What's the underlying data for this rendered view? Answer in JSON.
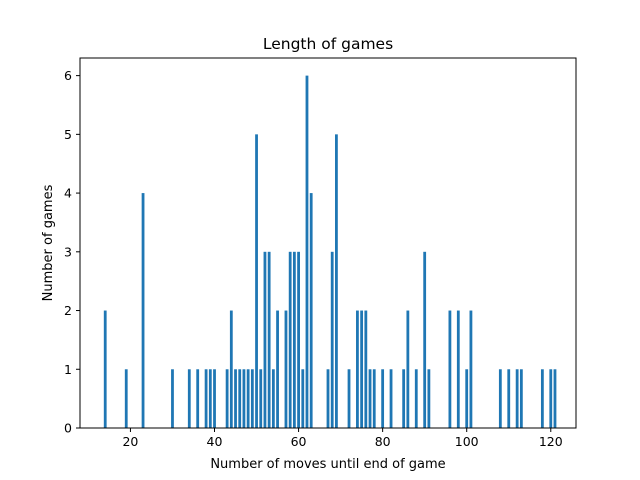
{
  "chart_data": {
    "type": "bar",
    "title": "Length of games",
    "xlabel": "Number of moves until end of game",
    "ylabel": "Number of games",
    "xlim": [
      8,
      126
    ],
    "ylim": [
      0,
      6.3
    ],
    "xticks": [
      20,
      40,
      60,
      80,
      100,
      120
    ],
    "yticks": [
      0,
      1,
      2,
      3,
      4,
      5,
      6
    ],
    "grid": false,
    "bar_color": "#1f77b4",
    "x": [
      14,
      19,
      23,
      30,
      34,
      36,
      38,
      39,
      40,
      43,
      44,
      45,
      46,
      47,
      48,
      49,
      50,
      51,
      52,
      53,
      54,
      55,
      57,
      58,
      59,
      60,
      61,
      62,
      63,
      67,
      68,
      69,
      72,
      74,
      75,
      76,
      77,
      78,
      80,
      82,
      85,
      86,
      88,
      90,
      91,
      96,
      98,
      100,
      101,
      108,
      110,
      112,
      113,
      118,
      120,
      121
    ],
    "values": [
      2,
      1,
      4,
      1,
      1,
      1,
      1,
      1,
      1,
      1,
      2,
      1,
      1,
      1,
      1,
      1,
      5,
      1,
      3,
      3,
      1,
      2,
      2,
      3,
      3,
      3,
      1,
      6,
      4,
      1,
      3,
      5,
      1,
      2,
      2,
      2,
      1,
      1,
      1,
      1,
      1,
      2,
      1,
      3,
      1,
      2,
      2,
      1,
      2,
      1,
      1,
      1,
      1,
      1,
      1,
      1
    ]
  }
}
